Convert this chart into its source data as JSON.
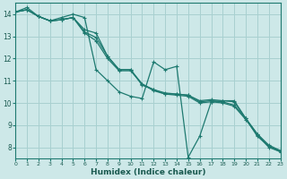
{
  "title": "",
  "xlabel": "Humidex (Indice chaleur)",
  "ylabel": "",
  "xlim": [
    0,
    23
  ],
  "ylim": [
    7.5,
    14.5
  ],
  "xticks": [
    0,
    1,
    2,
    3,
    4,
    5,
    6,
    7,
    8,
    9,
    10,
    11,
    12,
    13,
    14,
    15,
    16,
    17,
    18,
    19,
    20,
    21,
    22,
    23
  ],
  "yticks": [
    8,
    9,
    10,
    11,
    12,
    13,
    14
  ],
  "background_color": "#cde8e8",
  "grid_color": "#a8d0d0",
  "line_color": "#1e7a70",
  "series": [
    [
      14.1,
      14.3,
      13.9,
      13.7,
      13.85,
      14.0,
      13.85,
      11.5,
      11.0,
      10.5,
      10.3,
      10.2,
      11.85,
      11.5,
      11.65,
      7.55,
      8.5,
      10.05,
      10.1,
      10.1,
      9.3,
      8.5,
      8.05,
      7.8
    ],
    [
      14.1,
      14.2,
      13.9,
      13.7,
      13.75,
      13.85,
      13.3,
      13.15,
      12.1,
      11.5,
      11.5,
      10.8,
      10.6,
      10.4,
      10.4,
      10.35,
      10.1,
      10.15,
      10.1,
      10.05,
      9.3,
      8.6,
      8.1,
      7.85
    ],
    [
      14.1,
      14.2,
      13.9,
      13.7,
      13.75,
      13.85,
      13.2,
      12.95,
      12.1,
      11.5,
      11.5,
      10.85,
      10.6,
      10.45,
      10.4,
      10.35,
      10.05,
      10.1,
      10.05,
      9.9,
      9.3,
      8.6,
      8.05,
      7.85
    ],
    [
      14.1,
      14.2,
      13.9,
      13.7,
      13.75,
      13.85,
      13.15,
      12.8,
      12.0,
      11.45,
      11.45,
      10.85,
      10.55,
      10.4,
      10.35,
      10.3,
      10.0,
      10.05,
      10.0,
      9.85,
      9.25,
      8.55,
      8.0,
      7.8
    ]
  ]
}
